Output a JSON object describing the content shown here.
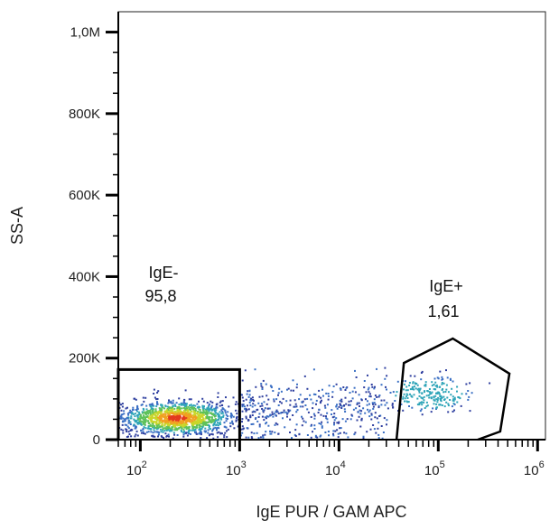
{
  "chart_data": {
    "type": "scatter",
    "subtype": "flow-cytometry-density-dot-plot",
    "xlabel": "IgE PUR / GAM APC",
    "ylabel": "SS-A",
    "x_scale": "log",
    "x_tick_labels": [
      {
        "base": "10",
        "exp": "2",
        "value": 100
      },
      {
        "base": "10",
        "exp": "3",
        "value": 1000
      },
      {
        "base": "10",
        "exp": "4",
        "value": 10000
      },
      {
        "base": "10",
        "exp": "5",
        "value": 100000
      },
      {
        "base": "10",
        "exp": "6",
        "value": 1000000
      }
    ],
    "xlim": [
      60,
      1200000
    ],
    "y_scale": "linear",
    "y_tick_labels": [
      {
        "label": "0",
        "value": 0
      },
      {
        "label": "200K",
        "value": 200000
      },
      {
        "label": "400K",
        "value": 400000
      },
      {
        "label": "600K",
        "value": 600000
      },
      {
        "label": "800K",
        "value": 800000
      },
      {
        "label": "1,0M",
        "value": 1000000
      }
    ],
    "ylim": [
      0,
      1050000
    ],
    "grid": false,
    "point_colors": [
      "#2f3f9f",
      "#3a6fc4",
      "#2fa5b8",
      "#5ec15a",
      "#c9d62a",
      "#f0a020",
      "#e33a1f"
    ],
    "populations": [
      {
        "name": "main-cluster",
        "x_center": 230,
        "y_center": 55000,
        "x_spread_decades": 0.3,
        "y_spread": 22000,
        "count": 1400
      },
      {
        "name": "mid-tail",
        "x_range": [
          1000,
          30000
        ],
        "y_center": 75000,
        "y_spread": 40000,
        "count": 420
      },
      {
        "name": "positive-cluster",
        "x_center": 80000,
        "y_center": 115000,
        "x_spread_decades": 0.22,
        "y_spread": 22000,
        "count": 230
      }
    ],
    "gates": [
      {
        "name": "IgE-",
        "value": "95,8",
        "shape": "rectangle",
        "vertices": [
          [
            60,
            0
          ],
          [
            60,
            172000
          ],
          [
            1000,
            172000
          ],
          [
            1000,
            0
          ]
        ]
      },
      {
        "name": "IgE+",
        "value": "1,61",
        "shape": "polygon",
        "vertices": [
          [
            38000,
            0
          ],
          [
            45000,
            188000
          ],
          [
            140000,
            248000
          ],
          [
            520000,
            162000
          ],
          [
            420000,
            20000
          ],
          [
            250000,
            0
          ]
        ]
      }
    ]
  },
  "gate_labels": {
    "neg_name": "IgE-",
    "neg_value": "95,8",
    "pos_name": "IgE+",
    "pos_value": "1,61"
  }
}
